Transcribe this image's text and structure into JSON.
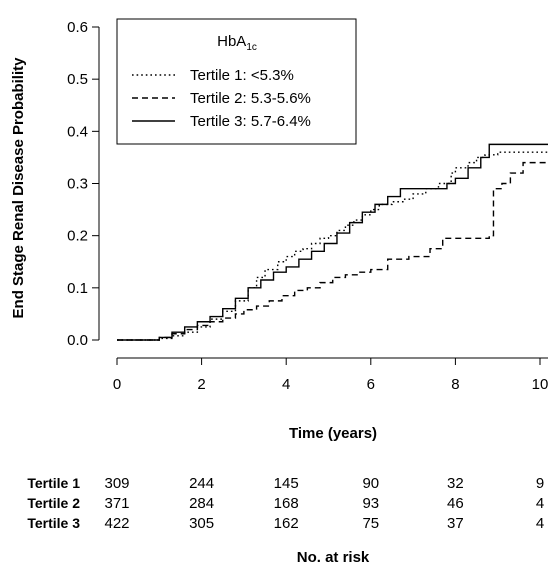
{
  "chart_data": {
    "type": "line",
    "subtype": "step",
    "title": "",
    "xlabel": "Time (years)",
    "ylabel": "End Stage Renal Disease Probability",
    "xlim": [
      0,
      10
    ],
    "ylim": [
      0,
      0.6
    ],
    "x_ticks": [
      "0",
      "2",
      "4",
      "6",
      "8",
      "10"
    ],
    "y_ticks": [
      "0.0",
      "0.1",
      "0.2",
      "0.3",
      "0.4",
      "0.5",
      "0.6"
    ],
    "grid": false,
    "legend": {
      "title_base": "HbA",
      "title_sub": "1c",
      "placement": "top-left",
      "entries": [
        "Tertile 1: <5.3%",
        "Tertile 2: 5.3-5.6%",
        "Tertile 3: 5.7-6.4%"
      ]
    },
    "series": [
      {
        "name": "Tertile 1: <5.3%",
        "line_style": "dotted",
        "x": [
          0,
          0.6,
          1.0,
          1.3,
          1.6,
          1.9,
          2.2,
          2.5,
          2.8,
          3.1,
          3.3,
          3.5,
          3.8,
          4.0,
          4.2,
          4.4,
          4.6,
          4.8,
          5.0,
          5.2,
          5.4,
          5.6,
          5.8,
          6.0,
          6.2,
          6.5,
          6.8,
          7.0,
          7.3,
          7.6,
          7.9,
          8.0,
          8.3,
          8.5,
          8.7,
          9.0,
          10.2
        ],
        "y": [
          0,
          0,
          0.003,
          0.008,
          0.015,
          0.025,
          0.04,
          0.055,
          0.075,
          0.1,
          0.12,
          0.135,
          0.15,
          0.16,
          0.17,
          0.175,
          0.185,
          0.195,
          0.2,
          0.21,
          0.22,
          0.23,
          0.24,
          0.25,
          0.26,
          0.265,
          0.27,
          0.28,
          0.29,
          0.3,
          0.32,
          0.33,
          0.34,
          0.35,
          0.355,
          0.36,
          0.36
        ]
      },
      {
        "name": "Tertile 2: 5.3-5.6%",
        "line_style": "dashed",
        "x": [
          0,
          0.7,
          1.0,
          1.3,
          1.6,
          1.9,
          2.2,
          2.5,
          2.8,
          3.0,
          3.3,
          3.6,
          3.9,
          4.2,
          4.5,
          4.8,
          5.1,
          5.4,
          5.7,
          6.0,
          6.4,
          6.9,
          7.4,
          7.7,
          8.3,
          8.8,
          8.9,
          9.1,
          9.3,
          9.6,
          10.2
        ],
        "y": [
          0,
          0,
          0.005,
          0.012,
          0.02,
          0.028,
          0.035,
          0.042,
          0.05,
          0.058,
          0.065,
          0.075,
          0.085,
          0.095,
          0.1,
          0.11,
          0.12,
          0.125,
          0.13,
          0.135,
          0.155,
          0.16,
          0.175,
          0.195,
          0.195,
          0.2,
          0.29,
          0.3,
          0.32,
          0.34,
          0.34
        ]
      },
      {
        "name": "Tertile 3: 5.7-6.4%",
        "line_style": "solid",
        "x": [
          0,
          0.6,
          1.0,
          1.3,
          1.6,
          1.9,
          2.2,
          2.5,
          2.8,
          3.1,
          3.4,
          3.7,
          4.0,
          4.3,
          4.6,
          4.9,
          5.2,
          5.5,
          5.8,
          6.1,
          6.4,
          6.7,
          7.0,
          7.5,
          7.8,
          8.0,
          8.3,
          8.6,
          8.8,
          10.2
        ],
        "y": [
          0,
          0,
          0.005,
          0.015,
          0.025,
          0.035,
          0.045,
          0.06,
          0.08,
          0.1,
          0.115,
          0.13,
          0.14,
          0.155,
          0.17,
          0.185,
          0.205,
          0.225,
          0.245,
          0.26,
          0.275,
          0.29,
          0.29,
          0.29,
          0.3,
          0.31,
          0.33,
          0.35,
          0.375,
          0.375
        ]
      }
    ],
    "risk_table": {
      "title": "No. at risk",
      "rows": [
        {
          "label": "Tertile 1",
          "values": [
            "309",
            "244",
            "145",
            "90",
            "32",
            "9"
          ]
        },
        {
          "label": "Tertile 2",
          "values": [
            "371",
            "284",
            "168",
            "93",
            "46",
            "4"
          ]
        },
        {
          "label": "Tertile 3",
          "values": [
            "422",
            "305",
            "162",
            "75",
            "37",
            "4"
          ]
        }
      ]
    }
  }
}
